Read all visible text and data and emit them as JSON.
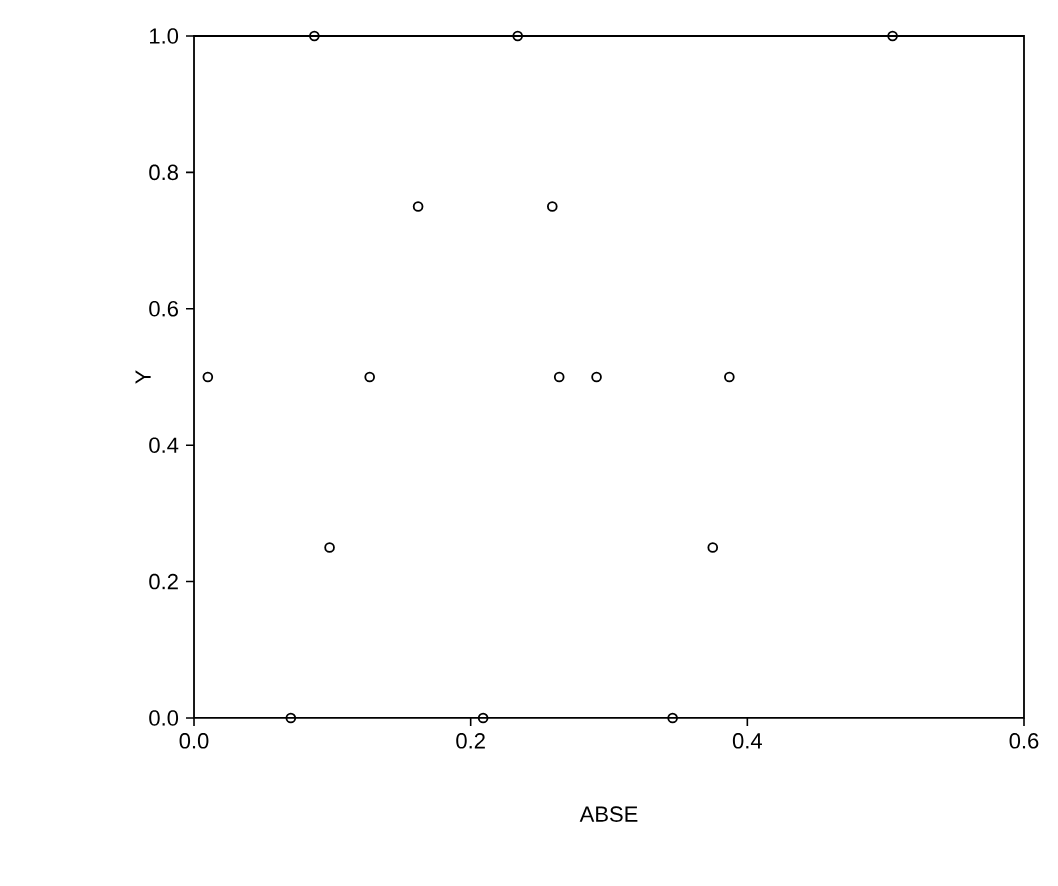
{
  "chart_data": {
    "type": "scatter",
    "xlabel": "ABSE",
    "ylabel": "Y",
    "x": [
      0.087,
      0.234,
      0.505,
      0.162,
      0.259,
      0.01,
      0.127,
      0.264,
      0.291,
      0.387,
      0.098,
      0.375,
      0.07,
      0.209,
      0.346
    ],
    "values": [
      1,
      1,
      1,
      0.75,
      0.75,
      0.5,
      0.5,
      0.5,
      0.5,
      0.5,
      0.25,
      0.25,
      0,
      0,
      0
    ],
    "color": "#000000",
    "marker": "circle",
    "grid": false,
    "xlim": [
      0,
      0.6
    ],
    "ylim": [
      0,
      1
    ],
    "xticks": [
      {
        "value": 0,
        "label": "0.0"
      },
      0.2,
      0.4,
      0.6
    ],
    "yticks": [
      {
        "value": 0,
        "label": "0.0"
      },
      0.2,
      0.4,
      0.6,
      0.8,
      {
        "value": 1,
        "label": "1.0"
      }
    ]
  }
}
